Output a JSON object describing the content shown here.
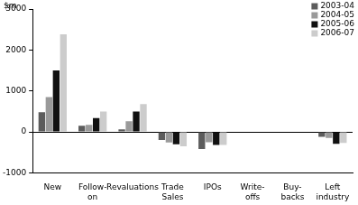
{
  "chart_data": {
    "type": "bar",
    "y_label": "$m",
    "categories": [
      "New",
      "Follow-on",
      "Revaluations",
      "Trade Sales",
      "IPOs",
      "Write-offs",
      "Buy-backs",
      "Left industry"
    ],
    "series": [
      {
        "name": "2003-04",
        "color": "#5c5c5c",
        "values": [
          480,
          150,
          60,
          -200,
          -420,
          0,
          0,
          -120
        ]
      },
      {
        "name": "2004-05",
        "color": "#9a9a9a",
        "values": [
          850,
          170,
          260,
          -260,
          -250,
          0,
          0,
          -150
        ]
      },
      {
        "name": "2005-06",
        "color": "#111111",
        "values": [
          1500,
          340,
          500,
          -300,
          -320,
          0,
          0,
          -290
        ]
      },
      {
        "name": "2006-07",
        "color": "#cccccc",
        "values": [
          2380,
          500,
          680,
          -350,
          -320,
          0,
          0,
          -270
        ]
      }
    ],
    "ylim": [
      -1000,
      3000
    ],
    "yticks": [
      -1000,
      0,
      1000,
      2000,
      3000
    ],
    "grid": false,
    "legend": "top-right"
  }
}
